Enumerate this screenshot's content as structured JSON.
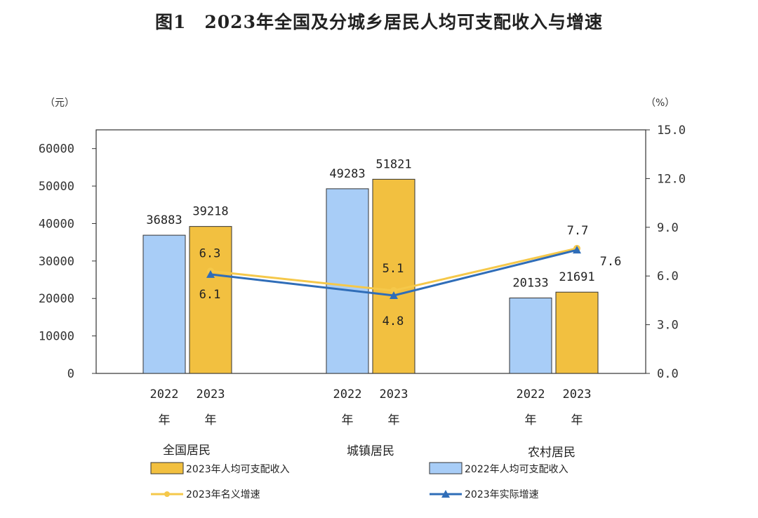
{
  "title": "图1　2023年全国及分城乡居民人均可支配收入与增速",
  "chart_data": {
    "type": "bar",
    "title": "图1　2023年全国及分城乡居民人均可支配收入与增速",
    "categories": [
      "全国居民",
      "城镇居民",
      "农村居民"
    ],
    "year_labels": [
      "2022",
      "2023"
    ],
    "year_suffix": "年",
    "left_axis": {
      "unit": "（元）",
      "ylim": [
        0,
        65000
      ],
      "ticks": [
        0,
        10000,
        20000,
        30000,
        40000,
        50000,
        60000
      ],
      "tick_labels": [
        "0",
        "10000",
        "20000",
        "30000",
        "40000",
        "50000",
        "60000"
      ]
    },
    "right_axis": {
      "unit": "（%）",
      "ylim": [
        0,
        15
      ],
      "ticks": [
        0,
        3,
        6,
        9,
        12,
        15
      ],
      "tick_labels": [
        "0.0",
        "3.0",
        "6.0",
        "9.0",
        "12.0",
        "15.0"
      ]
    },
    "bar_series": [
      {
        "name": "2022年人均可支配收入",
        "color": "#a8cdf7",
        "values": [
          36883,
          49283,
          20133
        ]
      },
      {
        "name": "2023年人均可支配收入",
        "color": "#f2c040",
        "values": [
          39218,
          51821,
          21691
        ]
      }
    ],
    "line_series": [
      {
        "name": "2023年名义增速",
        "color": "#f5c84a",
        "marker": "circle",
        "values": [
          6.3,
          5.1,
          7.7
        ],
        "labels": [
          "6.3",
          "5.1",
          "7.7"
        ]
      },
      {
        "name": "2023年实际增速",
        "color": "#2f6db8",
        "marker": "triangle",
        "values": [
          6.1,
          4.8,
          7.6
        ],
        "labels": [
          "6.1",
          "4.8",
          "7.6"
        ]
      }
    ],
    "grid": false,
    "legend_placement": "bottom"
  }
}
